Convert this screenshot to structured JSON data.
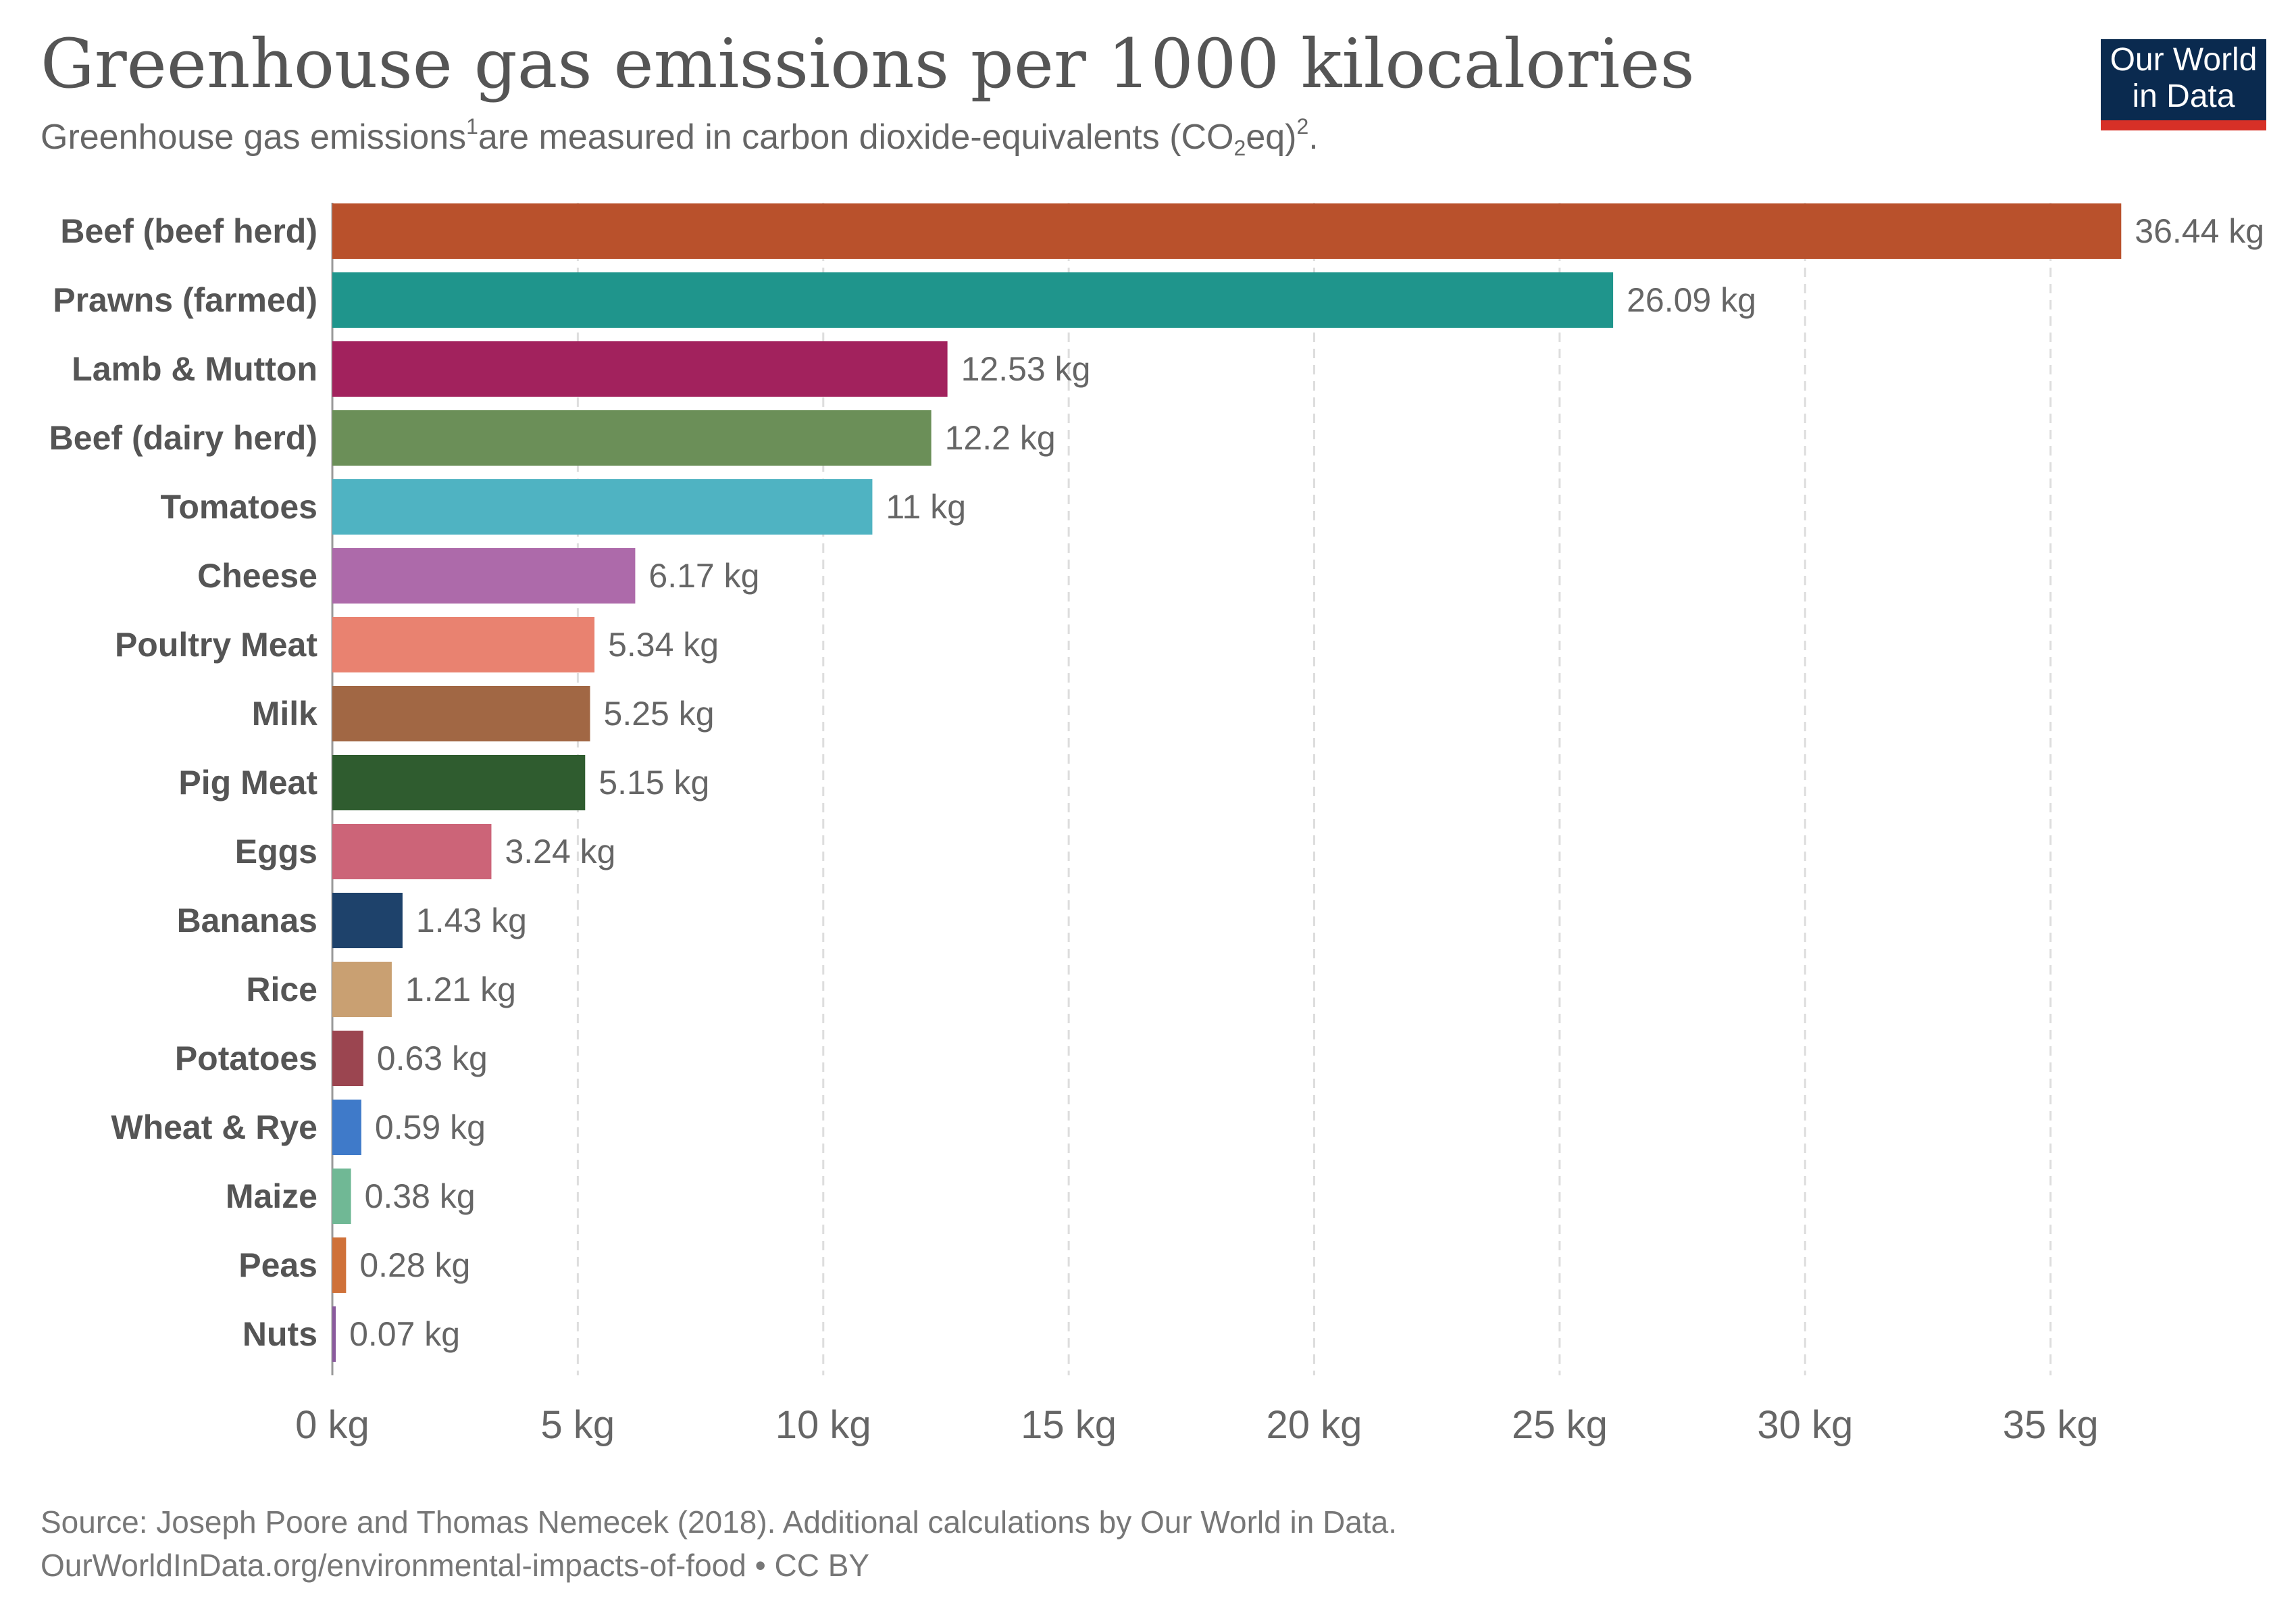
{
  "header": {
    "title": "Greenhouse gas emissions per 1000 kilocalories",
    "subtitle_part1": "Greenhouse gas emissions",
    "subtitle_sup1": "1",
    "subtitle_part2": "are measured in carbon dioxide-equivalents (CO",
    "subtitle_sub": "2",
    "subtitle_part3": "eq)",
    "subtitle_sup2": "2",
    "subtitle_part4": "."
  },
  "logo": {
    "line1": "Our World",
    "line2": "in Data",
    "bg_color": "#0a2a4f",
    "accent_color": "#d73027"
  },
  "footer": {
    "source": "Source: Joseph Poore and Thomas Nemecek (2018). Additional calculations by Our World in Data.",
    "url": "OurWorldInData.org/environmental-impacts-of-food • CC BY"
  },
  "chart_data": {
    "type": "bar",
    "orientation": "horizontal",
    "categories": [
      "Beef (beef herd)",
      "Prawns (farmed)",
      "Lamb & Mutton",
      "Beef (dairy herd)",
      "Tomatoes",
      "Cheese",
      "Poultry Meat",
      "Milk",
      "Pig Meat",
      "Eggs",
      "Bananas",
      "Rice",
      "Potatoes",
      "Wheat & Rye",
      "Maize",
      "Peas",
      "Nuts"
    ],
    "values": [
      36.44,
      26.09,
      12.53,
      12.2,
      11,
      6.17,
      5.34,
      5.25,
      5.15,
      3.24,
      1.43,
      1.21,
      0.63,
      0.59,
      0.38,
      0.28,
      0.07
    ],
    "value_labels": [
      "36.44 kg",
      "26.09 kg",
      "12.53 kg",
      "12.2 kg",
      "11 kg",
      "6.17 kg",
      "5.34 kg",
      "5.25 kg",
      "5.15 kg",
      "3.24 kg",
      "1.43 kg",
      "1.21 kg",
      "0.63 kg",
      "0.59 kg",
      "0.38 kg",
      "0.28 kg",
      "0.07 kg"
    ],
    "colors": [
      "#b9512c",
      "#1f958c",
      "#a2225d",
      "#6b8f58",
      "#4fb3c2",
      "#ad6aaa",
      "#e98270",
      "#a16744",
      "#2f5c2f",
      "#cc6478",
      "#1e426b",
      "#c9a072",
      "#9b4550",
      "#3f7ac9",
      "#70b895",
      "#cf7139",
      "#8a5a9d"
    ],
    "xlim": [
      0,
      38.5
    ],
    "x_ticks": [
      0,
      5,
      10,
      15,
      20,
      25,
      30,
      35
    ],
    "x_tick_labels": [
      "0 kg",
      "5 kg",
      "10 kg",
      "15 kg",
      "20 kg",
      "25 kg",
      "30 kg",
      "35 kg"
    ],
    "grid": true,
    "unit": "kg"
  }
}
